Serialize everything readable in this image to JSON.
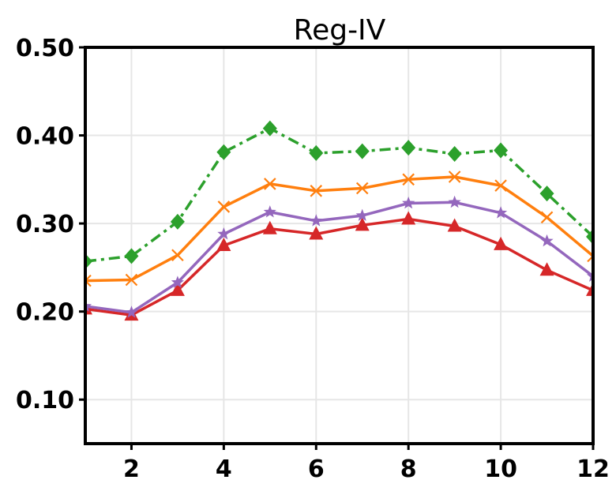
{
  "chart_data": {
    "type": "line",
    "title": "Reg-IV",
    "xlabel": "",
    "ylabel": "",
    "xlim": [
      1,
      12
    ],
    "ylim": [
      0.05,
      0.5
    ],
    "x": [
      1,
      2,
      3,
      4,
      5,
      6,
      7,
      8,
      9,
      10,
      11,
      12
    ],
    "xticks": [
      2,
      4,
      6,
      8,
      10,
      12
    ],
    "xtick_labels": [
      "2",
      "4",
      "6",
      "8",
      "10",
      "12"
    ],
    "yticks": [
      0.1,
      0.2,
      0.3,
      0.4,
      0.5
    ],
    "ytick_labels": [
      "0.10",
      "0.20",
      "0.30",
      "0.40",
      "0.50"
    ],
    "grid": true,
    "legend": "none",
    "series": [
      {
        "color": "#2ca02c",
        "marker": "diamond",
        "linestyle": "dashdot",
        "values": [
          0.257,
          0.263,
          0.302,
          0.381,
          0.408,
          0.38,
          0.382,
          0.386,
          0.379,
          0.383,
          0.334,
          0.285
        ]
      },
      {
        "color": "#ff7f0e",
        "marker": "x",
        "linestyle": "solid",
        "values": [
          0.235,
          0.236,
          0.264,
          0.319,
          0.345,
          0.337,
          0.34,
          0.35,
          0.353,
          0.343,
          0.307,
          0.263
        ]
      },
      {
        "color": "#9467bd",
        "marker": "star",
        "linestyle": "solid",
        "values": [
          0.206,
          0.199,
          0.233,
          0.288,
          0.313,
          0.303,
          0.309,
          0.323,
          0.324,
          0.312,
          0.28,
          0.24
        ]
      },
      {
        "color": "#d62728",
        "marker": "triangle",
        "linestyle": "solid",
        "values": [
          0.203,
          0.196,
          0.224,
          0.275,
          0.294,
          0.288,
          0.298,
          0.305,
          0.297,
          0.276,
          0.247,
          0.224
        ]
      }
    ]
  }
}
